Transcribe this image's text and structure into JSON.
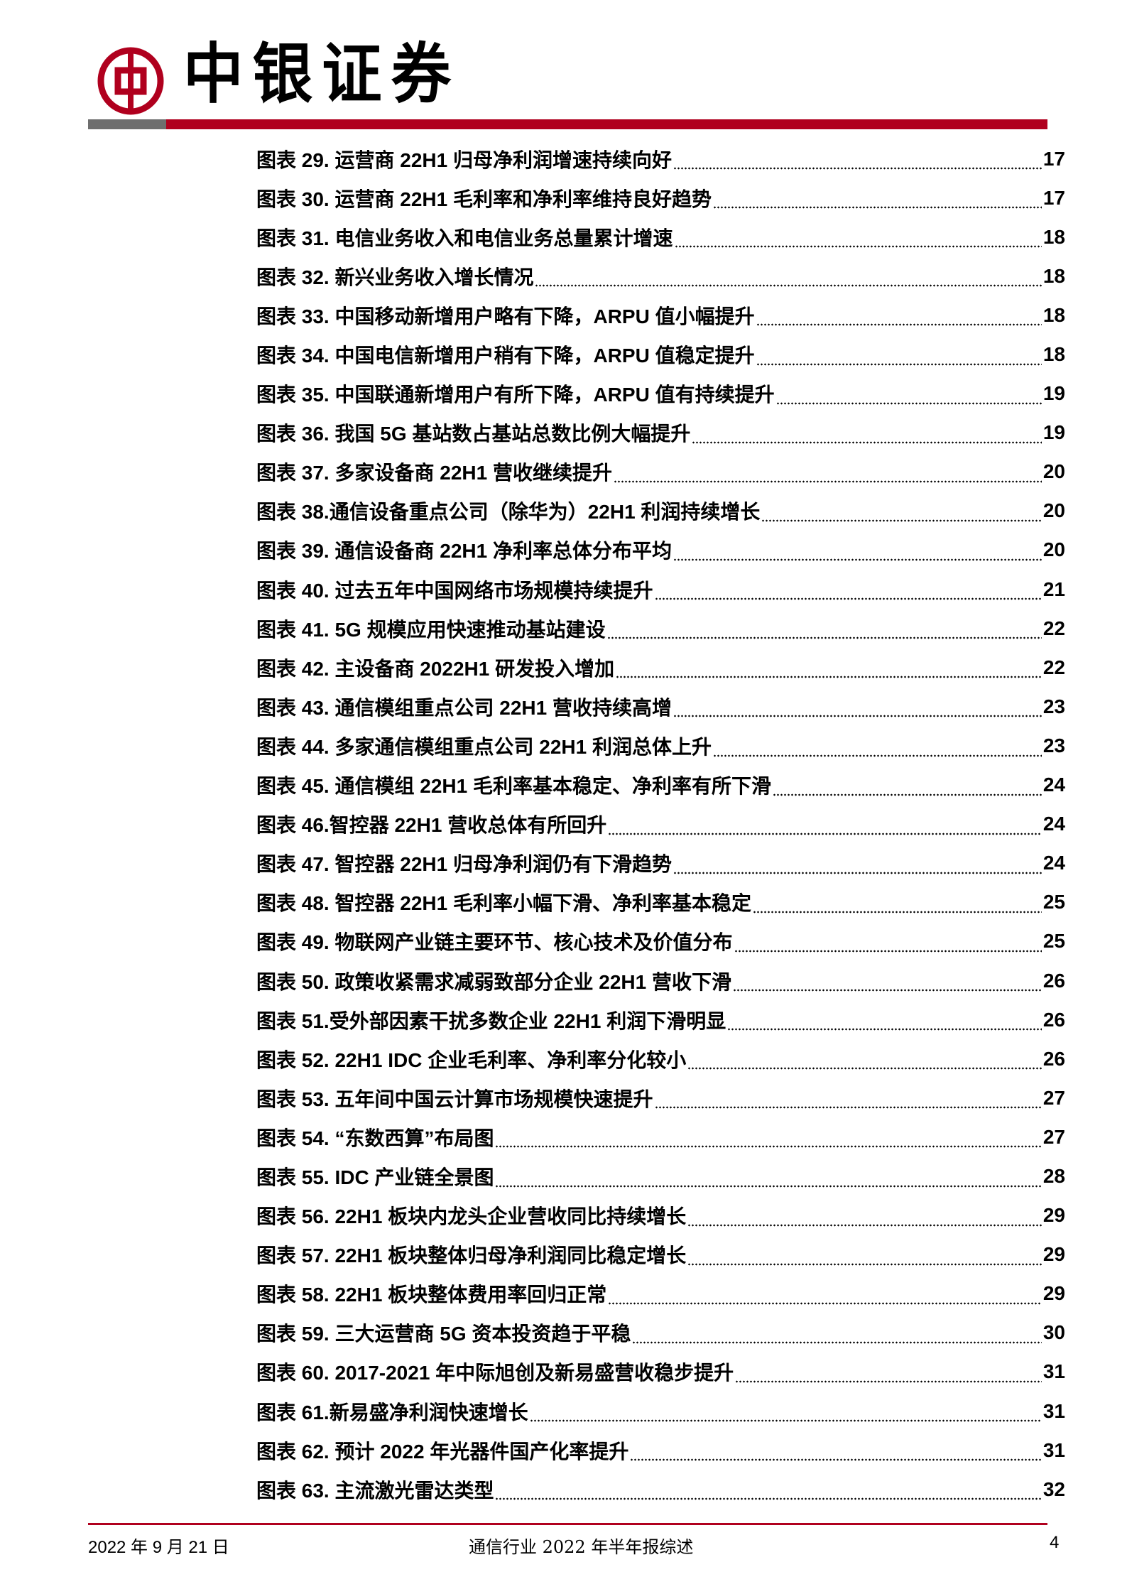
{
  "header": {
    "brand": "中银证券",
    "colors": {
      "brand_red": "#b0001e",
      "bar_gray": "#6e6e6e"
    }
  },
  "toc": [
    {
      "title": "图表 29. 运营商 22H1 归母净利润增速持续向好",
      "page": "17"
    },
    {
      "title": "图表 30. 运营商 22H1 毛利率和净利率维持良好趋势",
      "page": "17"
    },
    {
      "title": "图表 31. 电信业务收入和电信业务总量累计增速",
      "page": "18"
    },
    {
      "title": "图表 32. 新兴业务收入增长情况",
      "page": "18"
    },
    {
      "title": "图表 33. 中国移动新增用户略有下降，ARPU 值小幅提升",
      "page": "18"
    },
    {
      "title": "图表 34. 中国电信新增用户稍有下降，ARPU 值稳定提升",
      "page": "18"
    },
    {
      "title": "图表 35. 中国联通新增用户有所下降，ARPU 值有持续提升",
      "page": "19"
    },
    {
      "title": "图表 36. 我国 5G 基站数占基站总数比例大幅提升",
      "page": "19"
    },
    {
      "title": "图表 37. 多家设备商 22H1 营收继续提升",
      "page": "20"
    },
    {
      "title": "图表 38.通信设备重点公司（除华为）22H1 利润持续增长",
      "page": "20"
    },
    {
      "title": "图表 39. 通信设备商 22H1 净利率总体分布平均",
      "page": "20"
    },
    {
      "title": "图表 40. 过去五年中国网络市场规模持续提升",
      "page": "21"
    },
    {
      "title": "图表 41. 5G 规模应用快速推动基站建设",
      "page": "22"
    },
    {
      "title": "图表 42. 主设备商 2022H1 研发投入增加",
      "page": "22"
    },
    {
      "title": "图表 43. 通信模组重点公司 22H1 营收持续高增",
      "page": "23"
    },
    {
      "title": "图表 44. 多家通信模组重点公司 22H1 利润总体上升",
      "page": "23"
    },
    {
      "title": "图表 45. 通信模组 22H1 毛利率基本稳定、净利率有所下滑",
      "page": "24"
    },
    {
      "title": "图表 46.智控器 22H1 营收总体有所回升",
      "page": "24"
    },
    {
      "title": "图表 47. 智控器 22H1 归母净利润仍有下滑趋势",
      "page": "24"
    },
    {
      "title": "图表 48. 智控器 22H1 毛利率小幅下滑、净利率基本稳定",
      "page": "25"
    },
    {
      "title": "图表 49. 物联网产业链主要环节、核心技术及价值分布",
      "page": "25"
    },
    {
      "title": "图表 50. 政策收紧需求减弱致部分企业 22H1 营收下滑",
      "page": "26"
    },
    {
      "title": "图表 51.受外部因素干扰多数企业 22H1 利润下滑明显",
      "page": "26"
    },
    {
      "title": "图表 52. 22H1 IDC 企业毛利率、净利率分化较小",
      "page": "26"
    },
    {
      "title": "图表 53. 五年间中国云计算市场规模快速提升",
      "page": "27"
    },
    {
      "title": "图表 54. “东数西算”布局图",
      "page": "27"
    },
    {
      "title": "图表 55. IDC 产业链全景图",
      "page": "28"
    },
    {
      "title": "图表 56.  22H1 板块内龙头企业营收同比持续增长",
      "page": "29"
    },
    {
      "title": "图表 57. 22H1 板块整体归母净利润同比稳定增长",
      "page": "29"
    },
    {
      "title": "图表 58. 22H1 板块整体费用率回归正常",
      "page": "29"
    },
    {
      "title": "图表 59. 三大运营商 5G 资本投资趋于平稳",
      "page": "30"
    },
    {
      "title": "图表 60. 2017-2021 年中际旭创及新易盛营收稳步提升",
      "page": "31"
    },
    {
      "title": "图表 61.新易盛净利润快速增长",
      "page": "31"
    },
    {
      "title": "图表 62. 预计 2022 年光器件国产化率提升",
      "page": "31"
    },
    {
      "title": "图表 63. 主流激光雷达类型",
      "page": "32"
    }
  ],
  "footer": {
    "date": "2022 年 9 月 21 日",
    "title": "通信行业 2022 年半年报综述",
    "page": "4"
  }
}
